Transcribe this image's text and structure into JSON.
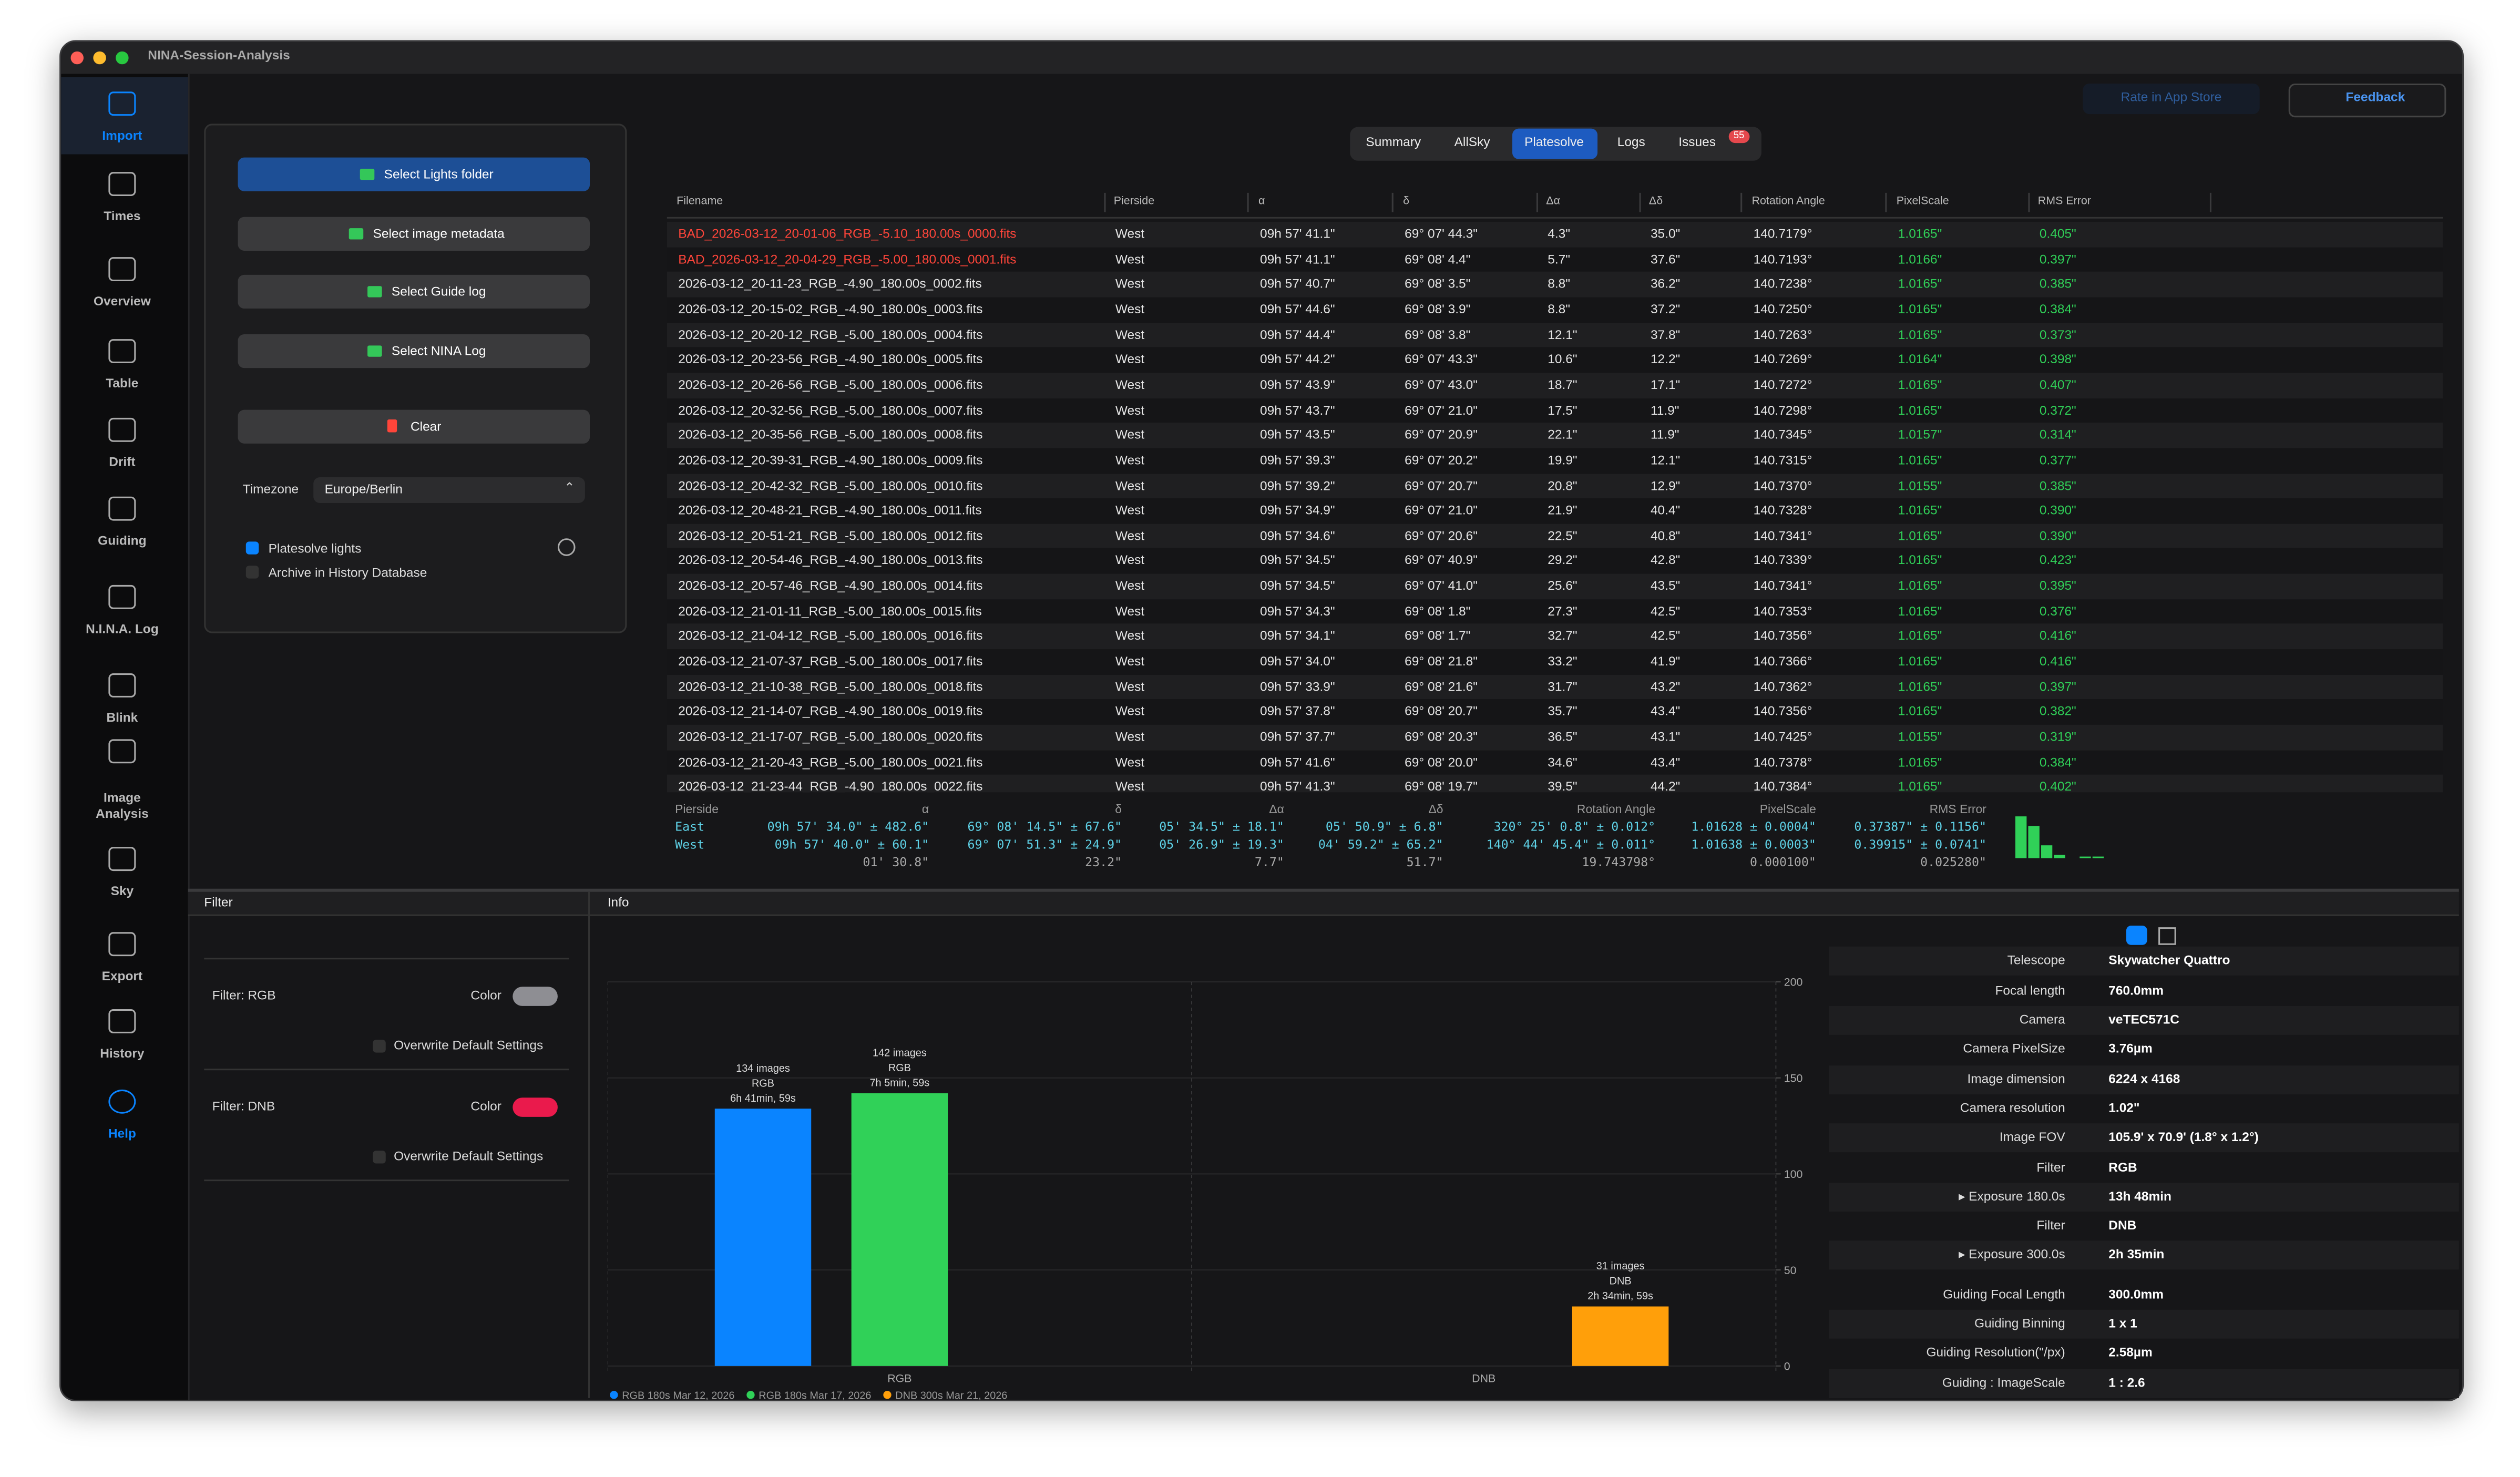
{
  "window": {
    "title": "NINA-Session-Analysis"
  },
  "sidebar": [
    "Import",
    "Times",
    "Overview",
    "Table",
    "Drift",
    "Guiding",
    "N.I.N.A. Log",
    "Blink",
    "Image Analysis",
    "Sky",
    "Export",
    "History",
    "Help"
  ],
  "toolbar": {
    "rate": "Rate in App Store",
    "feedback": "Feedback"
  },
  "tabs": {
    "items": [
      "Summary",
      "AllSky",
      "Platesolve",
      "Logs",
      "Issues"
    ],
    "issues_badge": "55"
  },
  "import_panel": {
    "buttons": [
      "Select Lights folder",
      "Select image metadata",
      "Select Guide log",
      "Select NINA Log"
    ],
    "clear": "Clear",
    "timezone_label": "Timezone",
    "timezone": "Europe/Berlin",
    "options": [
      "Platesolve lights",
      "Archive in History Database"
    ]
  },
  "table": {
    "columns": [
      "Filename",
      "Pierside",
      "α",
      "δ",
      "Δα",
      "Δδ",
      "Rotation Angle",
      "PixelScale",
      "RMS Error"
    ],
    "rows": [
      [
        "BAD_2026-03-12_20-01-06_RGB_-5.10_180.00s_0000.fits",
        "West",
        "09h 57' 41.1\"",
        "69° 07' 44.3\"",
        "4.3\"",
        "35.0\"",
        "140.7179°",
        "1.0165\"",
        "0.405\""
      ],
      [
        "BAD_2026-03-12_20-04-29_RGB_-5.00_180.00s_0001.fits",
        "West",
        "09h 57' 41.1\"",
        "69° 08' 4.4\"",
        "5.7\"",
        "37.6\"",
        "140.7193°",
        "1.0166\"",
        "0.397\""
      ],
      [
        "2026-03-12_20-11-23_RGB_-4.90_180.00s_0002.fits",
        "West",
        "09h 57' 40.7\"",
        "69° 08' 3.5\"",
        "8.8\"",
        "36.2\"",
        "140.7238°",
        "1.0165\"",
        "0.385\""
      ],
      [
        "2026-03-12_20-15-02_RGB_-4.90_180.00s_0003.fits",
        "West",
        "09h 57' 44.6\"",
        "69° 08' 3.9\"",
        "8.8\"",
        "37.2\"",
        "140.7250°",
        "1.0165\"",
        "0.384\""
      ],
      [
        "2026-03-12_20-20-12_RGB_-5.00_180.00s_0004.fits",
        "West",
        "09h 57' 44.4\"",
        "69° 08' 3.8\"",
        "12.1\"",
        "37.8\"",
        "140.7263°",
        "1.0165\"",
        "0.373\""
      ],
      [
        "2026-03-12_20-23-56_RGB_-4.90_180.00s_0005.fits",
        "West",
        "09h 57' 44.2\"",
        "69° 07' 43.3\"",
        "10.6\"",
        "12.2\"",
        "140.7269°",
        "1.0164\"",
        "0.398\""
      ],
      [
        "2026-03-12_20-26-56_RGB_-5.00_180.00s_0006.fits",
        "West",
        "09h 57' 43.9\"",
        "69° 07' 43.0\"",
        "18.7\"",
        "17.1\"",
        "140.7272°",
        "1.0165\"",
        "0.407\""
      ],
      [
        "2026-03-12_20-32-56_RGB_-5.00_180.00s_0007.fits",
        "West",
        "09h 57' 43.7\"",
        "69° 07' 21.0\"",
        "17.5\"",
        "11.9\"",
        "140.7298°",
        "1.0165\"",
        "0.372\""
      ],
      [
        "2026-03-12_20-35-56_RGB_-5.00_180.00s_0008.fits",
        "West",
        "09h 57' 43.5\"",
        "69° 07' 20.9\"",
        "22.1\"",
        "11.9\"",
        "140.7345°",
        "1.0157\"",
        "0.314\""
      ],
      [
        "2026-03-12_20-39-31_RGB_-4.90_180.00s_0009.fits",
        "West",
        "09h 57' 39.3\"",
        "69° 07' 20.2\"",
        "19.9\"",
        "12.1\"",
        "140.7315°",
        "1.0165\"",
        "0.377\""
      ],
      [
        "2026-03-12_20-42-32_RGB_-5.00_180.00s_0010.fits",
        "West",
        "09h 57' 39.2\"",
        "69° 07' 20.7\"",
        "20.8\"",
        "12.9\"",
        "140.7370°",
        "1.0155\"",
        "0.385\""
      ],
      [
        "2026-03-12_20-48-21_RGB_-4.90_180.00s_0011.fits",
        "West",
        "09h 57' 34.9\"",
        "69° 07' 21.0\"",
        "21.9\"",
        "40.4\"",
        "140.7328°",
        "1.0165\"",
        "0.390\""
      ],
      [
        "2026-03-12_20-51-21_RGB_-5.00_180.00s_0012.fits",
        "West",
        "09h 57' 34.6\"",
        "69° 07' 20.6\"",
        "22.5\"",
        "40.8\"",
        "140.7341°",
        "1.0165\"",
        "0.390\""
      ],
      [
        "2026-03-12_20-54-46_RGB_-4.90_180.00s_0013.fits",
        "West",
        "09h 57' 34.5\"",
        "69° 07' 40.9\"",
        "29.2\"",
        "42.8\"",
        "140.7339°",
        "1.0165\"",
        "0.423\""
      ],
      [
        "2026-03-12_20-57-46_RGB_-4.90_180.00s_0014.fits",
        "West",
        "09h 57' 34.5\"",
        "69° 07' 41.0\"",
        "25.6\"",
        "43.5\"",
        "140.7341°",
        "1.0165\"",
        "0.395\""
      ],
      [
        "2026-03-12_21-01-11_RGB_-5.00_180.00s_0015.fits",
        "West",
        "09h 57' 34.3\"",
        "69° 08' 1.8\"",
        "27.3\"",
        "42.5\"",
        "140.7353°",
        "1.0165\"",
        "0.376\""
      ],
      [
        "2026-03-12_21-04-12_RGB_-5.00_180.00s_0016.fits",
        "West",
        "09h 57' 34.1\"",
        "69° 08' 1.7\"",
        "32.7\"",
        "42.5\"",
        "140.7356°",
        "1.0165\"",
        "0.416\""
      ],
      [
        "2026-03-12_21-07-37_RGB_-5.00_180.00s_0017.fits",
        "West",
        "09h 57' 34.0\"",
        "69° 08' 21.8\"",
        "33.2\"",
        "41.9\"",
        "140.7366°",
        "1.0165\"",
        "0.416\""
      ],
      [
        "2026-03-12_21-10-38_RGB_-5.00_180.00s_0018.fits",
        "West",
        "09h 57' 33.9\"",
        "69° 08' 21.6\"",
        "31.7\"",
        "43.2\"",
        "140.7362°",
        "1.0165\"",
        "0.397\""
      ],
      [
        "2026-03-12_21-14-07_RGB_-4.90_180.00s_0019.fits",
        "West",
        "09h 57' 37.8\"",
        "69° 08' 20.7\"",
        "35.7\"",
        "43.4\"",
        "140.7356°",
        "1.0165\"",
        "0.382\""
      ],
      [
        "2026-03-12_21-17-07_RGB_-5.00_180.00s_0020.fits",
        "West",
        "09h 57' 37.7\"",
        "69° 08' 20.3\"",
        "36.5\"",
        "43.1\"",
        "140.7425°",
        "1.0155\"",
        "0.319\""
      ],
      [
        "2026-03-12_21-20-43_RGB_-5.00_180.00s_0021.fits",
        "West",
        "09h 57' 41.6\"",
        "69° 08' 20.0\"",
        "34.6\"",
        "43.4\"",
        "140.7378°",
        "1.0165\"",
        "0.384\""
      ],
      [
        "2026-03-12_21-23-44_RGB_-4.90_180.00s_0022.fits",
        "West",
        "09h 57' 41.3\"",
        "69° 08' 19.7\"",
        "39.5\"",
        "44.2\"",
        "140.7384°",
        "1.0165\"",
        "0.402\""
      ]
    ]
  },
  "summary": {
    "columns": [
      "Pierside",
      "α",
      "δ",
      "Δα",
      "Δδ",
      "Rotation Angle",
      "PixelScale",
      "RMS Error"
    ],
    "rows": [
      [
        "East",
        "09h 57' 34.0\" ± 482.6\"",
        "69° 08' 14.5\" ± 67.6\"",
        "05' 34.5\" ± 18.1\"",
        "05' 50.9\" ± 6.8\"",
        "320° 25' 0.8\" ± 0.012°",
        "1.01628 ± 0.0004\"",
        "0.37387\" ± 0.1156\""
      ],
      [
        "West",
        "09h 57' 40.0\" ± 60.1\"",
        "69° 07' 51.3\" ± 24.9\"",
        "05' 26.9\" ± 19.3\"",
        "04' 59.2\" ± 65.2\"",
        "140° 44' 45.4\" ± 0.011°",
        "1.01638 ± 0.0003\"",
        "0.39915\" ± 0.0741\""
      ]
    ],
    "differences": [
      "01' 30.8\"",
      "23.2\"",
      "7.7\"",
      "51.7\"",
      "19.743798°",
      "0.000100\"",
      "0.025280\""
    ]
  },
  "filter_panel": {
    "title": "Filter",
    "filters": [
      {
        "label": "Filter: DNB",
        "color_label": "Color",
        "overwrite": "Overwrite Default Settings"
      },
      {
        "label": "Filter: RGB",
        "color_label": "Color",
        "overwrite": "Overwrite Default Settings"
      }
    ]
  },
  "info_panel": {
    "title": "Info",
    "rows": [
      [
        "Telescope",
        "Skywatcher Quattro"
      ],
      [
        "Focal length",
        "760.0mm"
      ],
      [
        "Camera",
        "veTEC571C"
      ],
      [
        "Camera PixelSize",
        "3.76µm"
      ],
      [
        "Image dimension",
        "6224 x 4168"
      ],
      [
        "Camera resolution",
        "1.02\""
      ],
      [
        "Image FOV",
        "105.9' x 70.9' (1.8° x 1.2°)"
      ],
      [
        "Filter",
        "RGB"
      ],
      [
        "▸ Exposure 180.0s",
        "13h 48min"
      ],
      [
        "Filter",
        "DNB"
      ],
      [
        "▸ Exposure 300.0s",
        "2h 35min"
      ],
      [
        "Guiding Focal Length",
        "300.0mm"
      ],
      [
        "Guiding Binning",
        "1 x 1"
      ],
      [
        "Guiding Resolution(\"/px)",
        "2.58µm"
      ],
      [
        "Guiding : ImageScale",
        "1 : 2.6"
      ]
    ]
  },
  "chart_data": {
    "type": "bar",
    "categories": [
      "RGB",
      "DNB"
    ],
    "series": [
      {
        "name": "RGB 180s Mar 12, 2026",
        "color": "#0a84ff",
        "values": [
          134,
          null
        ],
        "value_labels": [
          [
            "134 images",
            "RGB",
            "6h 41min, 59s"
          ],
          null
        ]
      },
      {
        "name": "RGB 180s Mar 17, 2026",
        "color": "#30d158",
        "values": [
          142,
          null
        ],
        "value_labels": [
          [
            "142 images",
            "RGB",
            "7h 5min, 59s"
          ],
          null
        ]
      },
      {
        "name": "DNB 300s Mar 21, 2026",
        "color": "#ff9f0a",
        "values": [
          null,
          31
        ],
        "value_labels": [
          null,
          [
            "31 images",
            "DNB",
            "2h 34min, 59s"
          ]
        ]
      }
    ],
    "ylim": [
      0,
      200
    ],
    "yticks": [
      0,
      50,
      100,
      150,
      200
    ],
    "grid": true
  }
}
